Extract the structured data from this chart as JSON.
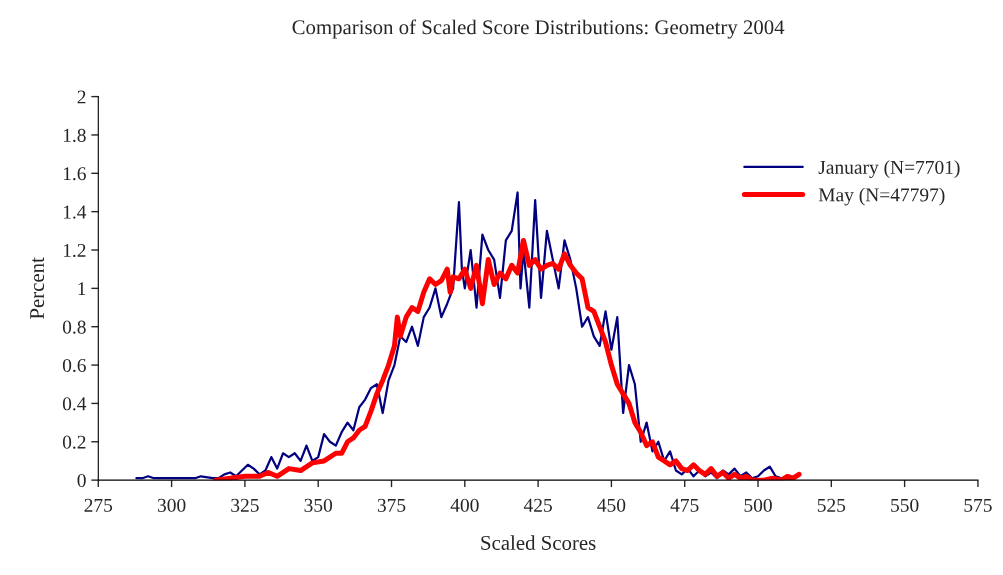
{
  "chart_data": {
    "type": "line",
    "title": "Comparison of Scaled Score Distributions: Geometry 2004",
    "xlabel": "Scaled Scores",
    "ylabel": "Percent",
    "xlim": [
      275,
      575
    ],
    "xticks": [
      275,
      300,
      325,
      350,
      375,
      400,
      425,
      450,
      475,
      500,
      525,
      550,
      575
    ],
    "ylim": [
      0,
      2
    ],
    "yticks": [
      0,
      0.2,
      0.4,
      0.6,
      0.8,
      1,
      1.2,
      1.4,
      1.6,
      1.8,
      2
    ],
    "legend": "top right",
    "grid": false,
    "marker": "none",
    "line_style": "solid",
    "series": [
      {
        "name": "January (N=7701)",
        "color": "#000080",
        "x": [
          288,
          290,
          292,
          294,
          296,
          298,
          300,
          302,
          305,
          308,
          310,
          312,
          314,
          316,
          318,
          320,
          322,
          324,
          326,
          328,
          330,
          332,
          334,
          336,
          338,
          340,
          342,
          344,
          346,
          348,
          350,
          352,
          354,
          356,
          358,
          360,
          362,
          364,
          366,
          368,
          370,
          372,
          374,
          376,
          378,
          380,
          382,
          384,
          386,
          388,
          390,
          392,
          394,
          396,
          398,
          399,
          400,
          402,
          404,
          406,
          408,
          410,
          412,
          414,
          416,
          418,
          419,
          420,
          422,
          424,
          426,
          428,
          430,
          432,
          434,
          436,
          438,
          440,
          442,
          444,
          446,
          448,
          450,
          452,
          454,
          456,
          458,
          460,
          462,
          464,
          466,
          468,
          470,
          472,
          474,
          476,
          478,
          480,
          482,
          484,
          486,
          488,
          490,
          492,
          494,
          496,
          498,
          500,
          502,
          504,
          506,
          508
        ],
        "values": [
          0.01,
          0.01,
          0.02,
          0.01,
          null,
          0.01,
          0.01,
          null,
          0.01,
          0.01,
          0.02,
          null,
          0.01,
          0.01,
          0.03,
          0.04,
          0.02,
          0.05,
          0.08,
          0.06,
          0.03,
          0.05,
          0.12,
          0.06,
          0.14,
          0.12,
          0.14,
          0.1,
          0.18,
          0.1,
          0.12,
          0.24,
          0.2,
          0.18,
          0.25,
          0.3,
          0.26,
          0.38,
          0.42,
          0.48,
          0.5,
          0.35,
          0.52,
          0.6,
          0.75,
          0.72,
          0.8,
          0.7,
          0.85,
          0.9,
          1.0,
          0.85,
          0.92,
          1.0,
          1.45,
          1.1,
          1.0,
          1.2,
          0.9,
          1.28,
          1.2,
          1.15,
          0.95,
          1.25,
          1.3,
          1.5,
          1.0,
          1.2,
          0.9,
          1.46,
          0.95,
          1.3,
          1.15,
          1.0,
          1.25,
          1.15,
          1.0,
          0.8,
          0.85,
          0.75,
          0.7,
          0.88,
          0.68,
          0.85,
          0.35,
          0.6,
          0.5,
          0.2,
          0.3,
          0.15,
          0.2,
          0.1,
          0.15,
          0.05,
          0.03,
          0.06,
          0.02,
          0.05,
          0.02,
          0.04,
          0.01,
          0.05,
          0.03,
          0.06,
          0.02,
          0.04,
          0.01,
          0.02,
          0.05,
          0.07,
          0.02,
          0.01
        ]
      },
      {
        "name": "May (N=47797)",
        "color": "#ff0000",
        "x": [
          315,
          320,
          325,
          330,
          333,
          336,
          340,
          344,
          348,
          352,
          356,
          358,
          360,
          362,
          364,
          366,
          368,
          370,
          372,
          374,
          376,
          377,
          378,
          380,
          382,
          384,
          386,
          388,
          390,
          392,
          394,
          395,
          396,
          398,
          400,
          402,
          404,
          406,
          408,
          410,
          412,
          414,
          416,
          418,
          420,
          422,
          424,
          426,
          428,
          430,
          432,
          434,
          436,
          438,
          440,
          442,
          444,
          446,
          448,
          450,
          452,
          454,
          456,
          458,
          460,
          462,
          464,
          466,
          468,
          470,
          472,
          474,
          476,
          478,
          480,
          482,
          484,
          486,
          488,
          490,
          492,
          494,
          496,
          498,
          500,
          502,
          505,
          508,
          510,
          512,
          514
        ],
        "values": [
          0,
          0.01,
          0.02,
          0.02,
          0.04,
          0.02,
          0.06,
          0.05,
          0.09,
          0.1,
          0.14,
          0.14,
          0.2,
          0.22,
          0.26,
          0.28,
          0.36,
          0.45,
          0.52,
          0.6,
          0.7,
          0.85,
          0.75,
          0.85,
          0.9,
          0.88,
          0.98,
          1.05,
          1.02,
          1.04,
          1.1,
          0.98,
          1.06,
          1.05,
          1.1,
          1.0,
          1.12,
          0.92,
          1.15,
          1.02,
          1.08,
          1.05,
          1.12,
          1.08,
          1.25,
          1.12,
          1.15,
          1.1,
          1.12,
          1.13,
          1.1,
          1.18,
          1.12,
          1.08,
          1.05,
          0.9,
          0.88,
          0.8,
          0.72,
          0.6,
          0.5,
          0.45,
          0.4,
          0.3,
          0.25,
          0.18,
          0.2,
          0.12,
          0.1,
          0.08,
          0.1,
          0.06,
          0.05,
          0.08,
          0.05,
          0.03,
          0.06,
          0.02,
          0.04,
          0.01,
          0.03,
          0.01,
          0.02,
          0,
          0,
          0,
          0.01,
          0,
          0.02,
          0.01,
          0.03
        ]
      }
    ]
  }
}
